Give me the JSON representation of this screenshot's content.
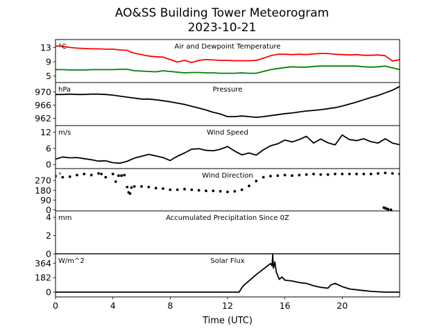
{
  "figure": {
    "title_line1": "AO&SS Building Tower Meteorogram",
    "title_line2": "2023-10-21",
    "xlabel": "Time (UTC)",
    "x_tick_labels": [
      "0",
      "4",
      "8",
      "12",
      "16",
      "20"
    ]
  },
  "chart_data": [
    {
      "type": "line",
      "title": "Air and Dewpoint Temperature",
      "unit": "°C",
      "ylim": [
        3.2,
        15.2
      ],
      "yticks": [
        5,
        9,
        13
      ],
      "xlim": [
        0,
        24
      ],
      "series": [
        {
          "color": "#ff0000",
          "x": [
            0,
            0.5,
            1,
            1.5,
            2,
            2.5,
            3,
            3.5,
            4,
            4.5,
            5,
            5.2,
            5.5,
            6,
            6.5,
            7,
            7.5,
            8,
            8.5,
            9,
            9.5,
            10,
            10.5,
            11,
            11.5,
            12,
            12.5,
            13,
            13.5,
            14,
            14.5,
            15,
            15.5,
            16,
            16.5,
            17,
            17.5,
            18,
            18.5,
            19,
            19.5,
            20,
            20.5,
            21,
            21.5,
            22,
            22.5,
            23,
            23.5,
            24
          ],
          "y": [
            13.4,
            13.3,
            13.0,
            12.8,
            12.7,
            12.6,
            12.6,
            12.5,
            12.5,
            12.3,
            12.2,
            11.8,
            11.4,
            11.0,
            10.6,
            10.4,
            10.3,
            9.6,
            8.9,
            9.4,
            8.8,
            9.4,
            9.6,
            9.5,
            9.4,
            9.4,
            9.3,
            9.3,
            9.3,
            9.4,
            10.0,
            10.7,
            11.1,
            11.1,
            11.0,
            11.1,
            11.0,
            11.2,
            11.3,
            11.3,
            11.1,
            11.0,
            10.9,
            11.0,
            10.8,
            10.8,
            10.9,
            10.7,
            9.2,
            9.6
          ]
        },
        {
          "color": "#008000",
          "x": [
            0,
            0.5,
            1,
            1.5,
            2,
            2.5,
            3,
            3.5,
            4,
            4.5,
            5,
            5.5,
            6,
            6.5,
            7,
            7.5,
            8,
            8.5,
            9,
            9.5,
            10,
            10.5,
            11,
            11.5,
            12,
            12.5,
            13,
            13.5,
            14,
            14.5,
            15,
            15.5,
            16,
            16.5,
            17,
            17.5,
            18,
            18.5,
            19,
            19.5,
            20,
            20.5,
            21,
            21.5,
            22,
            22.5,
            23,
            23.5,
            24
          ],
          "y": [
            6.8,
            6.8,
            6.7,
            6.7,
            6.7,
            6.8,
            6.8,
            6.8,
            6.8,
            6.9,
            6.9,
            6.5,
            6.4,
            6.3,
            6.2,
            6.5,
            6.3,
            6.1,
            5.9,
            6.0,
            6.0,
            5.9,
            5.9,
            5.8,
            5.8,
            5.8,
            5.9,
            5.8,
            5.8,
            6.3,
            6.8,
            7.1,
            7.4,
            7.6,
            7.5,
            7.5,
            7.7,
            7.8,
            7.8,
            7.8,
            7.8,
            7.8,
            7.8,
            7.6,
            7.5,
            7.6,
            7.8,
            7.3,
            6.8
          ]
        }
      ]
    },
    {
      "type": "line",
      "title": "Pressure",
      "unit": "hPa",
      "ylim": [
        959.8,
        972.8
      ],
      "yticks": [
        962,
        966,
        970
      ],
      "xlim": [
        0,
        24
      ],
      "series": [
        {
          "color": "#000000",
          "x": [
            0,
            0.5,
            1,
            1.5,
            2,
            2.5,
            3,
            3.5,
            4,
            4.5,
            5,
            5.5,
            6,
            6.5,
            7,
            7.5,
            8,
            8.5,
            9,
            9.5,
            10,
            10.5,
            11,
            11.5,
            12,
            12.5,
            13,
            13.5,
            14,
            14.5,
            15,
            15.5,
            16,
            16.5,
            17,
            17.5,
            18,
            18.5,
            19,
            19.5,
            20,
            20.5,
            21,
            21.5,
            22,
            22.5,
            23,
            23.5,
            24
          ],
          "y": [
            969.2,
            969.2,
            969.3,
            969.2,
            969.2,
            969.3,
            969.3,
            969.2,
            969.0,
            968.7,
            968.4,
            968.1,
            967.8,
            967.8,
            967.6,
            967.3,
            967.0,
            966.6,
            966.2,
            965.6,
            965.1,
            964.5,
            963.8,
            963.3,
            962.5,
            962.5,
            962.7,
            962.5,
            962.3,
            962.5,
            962.8,
            963.1,
            963.4,
            963.6,
            963.9,
            964.2,
            964.4,
            964.6,
            964.9,
            965.2,
            965.7,
            966.3,
            966.9,
            967.6,
            968.3,
            968.9,
            969.7,
            970.5,
            971.6
          ]
        }
      ]
    },
    {
      "type": "line",
      "title": "Wind Speed",
      "unit": "m/s",
      "ylim": [
        -1.5,
        14.5
      ],
      "yticks": [
        0,
        6,
        12
      ],
      "xlim": [
        0,
        24
      ],
      "series": [
        {
          "color": "#000000",
          "x": [
            0,
            0.5,
            1,
            1.5,
            2,
            2.5,
            3,
            3.5,
            4,
            4.5,
            5,
            5.5,
            6,
            6.5,
            7,
            7.5,
            8,
            8.5,
            9,
            9.5,
            10,
            10.5,
            11,
            11.5,
            12,
            12.5,
            13,
            13.5,
            14,
            14.5,
            15,
            15.5,
            16,
            16.5,
            17,
            17.5,
            18,
            18.5,
            19,
            19.5,
            20,
            20.5,
            21,
            21.5,
            22,
            22.5,
            23,
            23.5,
            24
          ],
          "y": [
            2.0,
            2.8,
            2.5,
            2.6,
            2.2,
            1.8,
            1.3,
            1.4,
            0.7,
            0.5,
            1.2,
            2.4,
            3.1,
            3.8,
            3.2,
            2.6,
            1.5,
            3.1,
            4.3,
            5.7,
            5.9,
            5.3,
            5.1,
            5.7,
            6.7,
            5.0,
            3.6,
            4.3,
            3.5,
            5.5,
            7.0,
            7.7,
            9.1,
            8.4,
            9.3,
            10.5,
            8.0,
            9.5,
            8.1,
            7.3,
            11.0,
            9.3,
            8.9,
            9.6,
            8.5,
            8.0,
            9.6,
            8.0,
            7.4
          ]
        }
      ]
    },
    {
      "type": "scatter",
      "title": "Wind Direction",
      "unit": "°",
      "ylim": [
        -10,
        380
      ],
      "yticks": [
        0,
        90,
        180,
        270
      ],
      "xlim": [
        0,
        24
      ],
      "series": [
        {
          "color": "#000000",
          "x": [
            0,
            0.5,
            1,
            1.5,
            2,
            2.5,
            3,
            3.2,
            3.5,
            4,
            4.2,
            4.4,
            4.6,
            4.8,
            5,
            5.1,
            5.2,
            5.3,
            5.5,
            6,
            6.5,
            7,
            7.5,
            8,
            8.5,
            9,
            9.5,
            10,
            10.5,
            11,
            11.5,
            12,
            12.5,
            13,
            13.5,
            14,
            14.5,
            15,
            15.5,
            16,
            16.5,
            17,
            17.5,
            18,
            18.5,
            19,
            19.5,
            20,
            20.5,
            21,
            21.5,
            22,
            22.5,
            23,
            23.5,
            24
          ],
          "y": [
            310,
            300,
            305,
            320,
            330,
            320,
            335,
            330,
            300,
            330,
            260,
            315,
            315,
            320,
            210,
            160,
            150,
            205,
            215,
            215,
            210,
            200,
            195,
            185,
            185,
            190,
            185,
            180,
            175,
            175,
            170,
            165,
            170,
            185,
            220,
            265,
            300,
            310,
            315,
            320,
            315,
            320,
            325,
            330,
            325,
            325,
            330,
            330,
            330,
            330,
            330,
            330,
            335,
            340,
            335,
            330
          ]
        },
        {
          "color": "#000000",
          "x": [
            22.9,
            23.0,
            23.1,
            23.2,
            23.4
          ],
          "y": [
            20,
            15,
            10,
            5,
            0
          ]
        }
      ]
    },
    {
      "type": "line",
      "title": "Accumulated Precipitation Since 0Z",
      "unit": "mm",
      "ylim": [
        0,
        4.7
      ],
      "yticks": [
        0,
        2,
        4
      ],
      "xlim": [
        0,
        24
      ],
      "series": [
        {
          "color": "#000000",
          "x": [
            0,
            24
          ],
          "y": [
            0,
            0
          ]
        }
      ]
    },
    {
      "type": "line",
      "title": "Solar Flux",
      "unit": "W/m^2",
      "ylim": [
        -60,
        480
      ],
      "yticks": [
        0,
        182,
        364
      ],
      "xlim": [
        0,
        24
      ],
      "series": [
        {
          "color": "#000000",
          "x": [
            0,
            12.8,
            12.95,
            13.1,
            14,
            15,
            15.1,
            15.15,
            15.2,
            15.3,
            15.4,
            15.5,
            15.6,
            15.8,
            16,
            16.5,
            17,
            17.5,
            18,
            18.5,
            19,
            19.2,
            19.5,
            20,
            20.5,
            21,
            21.5,
            22,
            22.5,
            23,
            23.5,
            24
          ],
          "y": [
            0,
            0,
            40,
            80,
            220,
            360,
            330,
            470,
            300,
            380,
            250,
            210,
            160,
            190,
            150,
            140,
            120,
            110,
            80,
            60,
            50,
            90,
            110,
            70,
            40,
            30,
            20,
            10,
            5,
            0,
            0,
            0
          ]
        }
      ]
    }
  ]
}
